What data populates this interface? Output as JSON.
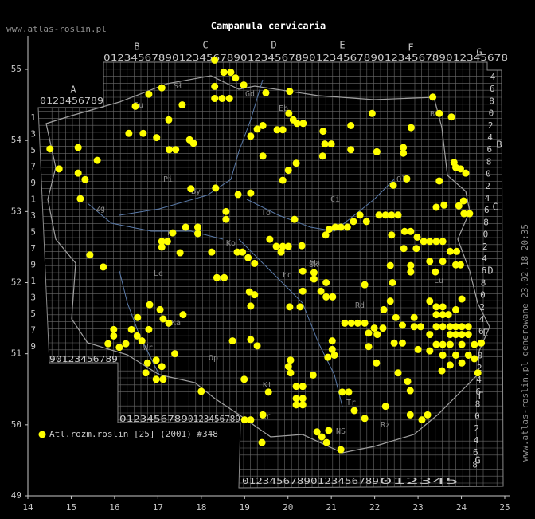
{
  "chart_data": {
    "type": "scatter",
    "title": "Campanula cervicaria",
    "watermark": "www.atlas-roslin.pl",
    "side_note": "www.atlas-roslin.pl generowane 23.02.18 20:35",
    "xlim": [
      14,
      25
    ],
    "ylim": [
      49,
      55
    ],
    "xticks": [
      14,
      15,
      16,
      17,
      18,
      19,
      20,
      21,
      22,
      23,
      24,
      25
    ],
    "yticks": [
      49,
      50,
      51,
      52,
      53,
      54,
      55
    ],
    "square_letters_top": [
      "A",
      "B",
      "C",
      "D",
      "E",
      "F",
      "G"
    ],
    "square_letters_right": [
      "B",
      "C",
      "D",
      "E",
      "F",
      "G"
    ],
    "grid_digits_top": [
      "0123456789",
      "0123456789",
      "0123456789",
      "0123456789",
      "0123456789",
      "0123456789",
      "012345678"
    ],
    "grid_digits_bottom": [
      "90123456789",
      "0123456789",
      "0123456789",
      "0123456789",
      "0123456789",
      "012345"
    ],
    "grid_digits_left": [
      "1",
      "3",
      "5",
      "7",
      "9",
      "1",
      "3",
      "5",
      "7",
      "9",
      "1",
      "3",
      "5",
      "7",
      "9"
    ],
    "grid_digits_right": [
      "4",
      "6",
      "8",
      "0",
      "2",
      "4",
      "6",
      "8",
      "0",
      "2",
      "4",
      "6",
      "8",
      "0",
      "2",
      "4",
      "6",
      "8",
      "0",
      "2",
      "4",
      "6",
      "8",
      "0",
      "2",
      "4",
      "6",
      "8",
      "0",
      "2",
      "4",
      "6",
      "8"
    ],
    "place_labels": [
      "Sł",
      "Gd",
      "Eb",
      "Su",
      "Bi",
      "Pi",
      "By",
      "To",
      "Ci",
      "Ło",
      "Wa",
      "Po",
      "Ko",
      "Le",
      "Pł",
      "Sk",
      "Rd",
      "Lu",
      "Wr",
      "Op",
      "Kt",
      "Kr",
      "Tr",
      "NS",
      "Rz",
      "Ka",
      "Zg",
      "Ol"
    ],
    "series": [
      {
        "name": "Atl.rozm.roslin [25] (2001) #348",
        "color": "#ffff00",
        "x": [
          14.51,
          14.72,
          15.16,
          15.16,
          15.32,
          15.21,
          15.6,
          15.43,
          15.74,
          16.48,
          16.79,
          17.09,
          17.56,
          17.25,
          16.33,
          16.66,
          16.97,
          17.26,
          17.41,
          17.73,
          17.82,
          18.31,
          18.52,
          18.68,
          18.79,
          18.31,
          18.98,
          18.31,
          18.48,
          18.65,
          19.49,
          20.04,
          20.02,
          20.12,
          20.21,
          20.35,
          19.42,
          19.29,
          19.14,
          19.75,
          19.88,
          19.42,
          20.81,
          20.85,
          21.0,
          20.8,
          21.45,
          21.45,
          21.94,
          22.05,
          22.66,
          22.66,
          22.84,
          23.34,
          23.49,
          23.77,
          23.83,
          23.87,
          23.98,
          23.49,
          24.1,
          22.74,
          22.43,
          23.42,
          23.6,
          23.94,
          24.05,
          24.19,
          24.06,
          18.33,
          17.76,
          18.85,
          18.57,
          18.57,
          19.14,
          20.15,
          19.88,
          20.01,
          20.19,
          17.64,
          17.92,
          17.92,
          17.34,
          17.09,
          17.22,
          17.09,
          17.51,
          18.24,
          18.83,
          18.95,
          19.08,
          19.23,
          18.36,
          18.53,
          19.11,
          19.23,
          19.58,
          19.73,
          19.88,
          20.01,
          19.84,
          20.32,
          20.34,
          20.6,
          20.6,
          20.87,
          20.95,
          21.09,
          21.22,
          21.37,
          21.51,
          21.66,
          21.81,
          22.1,
          22.25,
          22.39,
          22.54,
          22.39,
          22.69,
          22.83,
          22.98,
          23.13,
          23.27,
          23.42,
          23.57,
          22.67,
          22.96,
          23.74,
          23.89,
          23.27,
          23.57,
          23.87,
          23.98,
          22.83,
          22.83,
          23.4,
          22.36,
          22.41,
          21.77,
          20.88,
          20.88,
          21.03,
          20.76,
          20.34,
          20.28,
          20.04,
          19.14,
          18.72,
          19.29,
          19.14,
          16.81,
          17.05,
          17.12,
          17.25,
          17.58,
          16.53,
          15.98,
          15.98,
          15.85,
          16.11,
          16.39,
          16.52,
          16.79,
          16.63,
          16.26,
          16.96,
          17.09,
          16.96,
          17.12,
          16.72,
          17.39,
          18.0,
          18.99,
          19.55,
          19.0,
          19.14,
          19.42,
          19.4,
          20.19,
          20.34,
          20.19,
          20.34,
          20.19,
          20.34,
          20.06,
          20.01,
          20.06,
          20.58,
          20.92,
          21.02,
          21.02,
          21.07,
          21.31,
          21.46,
          21.61,
          21.77,
          21.86,
          21.86,
          21.99,
          22.06,
          22.19,
          22.21,
          22.36,
          22.49,
          22.64,
          22.64,
          22.45,
          22.91,
          22.91,
          23.06,
          23.0,
          23.27,
          23.42,
          23.57,
          23.42,
          23.57,
          23.7,
          23.87,
          24.01,
          23.42,
          23.57,
          23.74,
          23.87,
          24.01,
          24.16,
          23.27,
          23.74,
          23.87,
          24.01,
          24.16,
          23.42,
          23.57,
          23.74,
          24.01,
          24.3,
          23.27,
          23.57,
          23.87,
          24.16,
          24.46,
          23.55,
          23.74,
          24.01,
          24.3,
          24.38,
          22.76,
          22.82,
          22.54,
          22.04,
          21.25,
          21.4,
          21.53,
          21.77,
          22.25,
          22.82,
          23.09,
          23.22,
          20.78,
          20.89,
          20.94,
          21.22,
          20.67,
          16.76
        ],
        "y": [
          53.88,
          53.6,
          53.9,
          53.54,
          53.45,
          53.18,
          53.72,
          52.39,
          52.22,
          54.48,
          54.65,
          54.74,
          54.5,
          54.29,
          54.1,
          54.1,
          54.04,
          53.87,
          53.87,
          54.01,
          53.96,
          55.13,
          54.96,
          54.96,
          54.88,
          54.76,
          54.78,
          54.59,
          54.59,
          54.59,
          54.67,
          54.69,
          54.38,
          54.29,
          54.24,
          54.24,
          54.21,
          54.16,
          54.06,
          54.15,
          54.15,
          53.78,
          54.13,
          53.95,
          53.95,
          53.78,
          54.21,
          53.87,
          54.38,
          53.84,
          53.9,
          53.82,
          54.18,
          54.61,
          54.38,
          54.33,
          53.69,
          53.62,
          53.6,
          53.43,
          53.54,
          53.46,
          53.37,
          53.06,
          53.09,
          53.08,
          53.15,
          52.97,
          52.97,
          53.33,
          53.32,
          53.24,
          53.0,
          52.89,
          53.26,
          52.89,
          53.44,
          53.58,
          53.68,
          52.78,
          52.78,
          52.69,
          52.7,
          52.58,
          52.58,
          52.5,
          52.42,
          52.43,
          52.43,
          52.43,
          52.35,
          52.27,
          52.07,
          52.07,
          51.87,
          51.83,
          52.61,
          52.51,
          52.51,
          52.51,
          52.43,
          52.52,
          52.16,
          52.14,
          52.05,
          52.67,
          52.75,
          52.78,
          52.78,
          52.78,
          52.86,
          52.95,
          52.86,
          52.95,
          52.95,
          52.95,
          52.95,
          52.67,
          52.72,
          52.72,
          52.64,
          52.58,
          52.58,
          52.58,
          52.58,
          52.48,
          52.48,
          52.44,
          52.44,
          52.3,
          52.3,
          52.25,
          52.25,
          52.24,
          52.15,
          52.15,
          52.24,
          52.0,
          51.97,
          52.0,
          51.8,
          51.8,
          51.88,
          51.88,
          51.66,
          51.66,
          51.67,
          51.18,
          51.11,
          51.2,
          51.69,
          51.62,
          51.49,
          51.43,
          51.55,
          51.51,
          51.34,
          51.25,
          51.14,
          51.09,
          51.34,
          51.25,
          51.34,
          51.18,
          51.14,
          50.91,
          50.82,
          50.64,
          50.64,
          50.73,
          51.0,
          50.47,
          50.64,
          50.46,
          50.07,
          50.07,
          50.14,
          49.75,
          50.54,
          50.54,
          50.37,
          50.37,
          50.28,
          50.28,
          50.91,
          50.82,
          50.73,
          50.7,
          50.95,
          51.18,
          51.06,
          50.98,
          51.43,
          51.43,
          51.43,
          51.43,
          51.29,
          51.1,
          51.36,
          51.27,
          51.36,
          51.62,
          51.74,
          51.51,
          51.4,
          51.15,
          51.15,
          51.51,
          51.38,
          51.38,
          51.06,
          51.74,
          51.66,
          51.66,
          51.55,
          51.55,
          51.55,
          51.62,
          51.77,
          51.38,
          51.38,
          51.38,
          51.38,
          51.38,
          51.38,
          51.27,
          51.27,
          51.27,
          51.27,
          51.27,
          51.13,
          51.13,
          51.13,
          51.13,
          51.13,
          51.04,
          50.98,
          50.98,
          50.98,
          51.15,
          50.76,
          50.84,
          50.87,
          50.93,
          50.73,
          50.61,
          50.48,
          50.73,
          50.87,
          50.46,
          50.46,
          50.2,
          50.09,
          50.26,
          50.14,
          50.07,
          50.14,
          49.83,
          49.75,
          49.92,
          49.65,
          49.9,
          50.87
        ]
      }
    ]
  }
}
